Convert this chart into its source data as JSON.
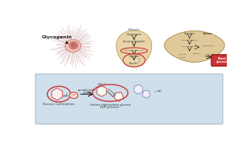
{
  "bg_color": "#ffffff",
  "muscle_fill": "#e8d4a8",
  "liver_fill": "#dfc99a",
  "blood_glucose_fill": "#cc3333",
  "bottom_bg": "#cfe0ec",
  "red_color": "#cc3333",
  "dark_text": "#222222",
  "mid_text": "#444444",
  "small_text": "#333333",
  "spoke_color": "#c09090",
  "core_color": "#e8a0a0",
  "inner_color": "#d07070",
  "label_fs": 4.5,
  "small_fs": 3.2,
  "tiny_fs": 2.8
}
